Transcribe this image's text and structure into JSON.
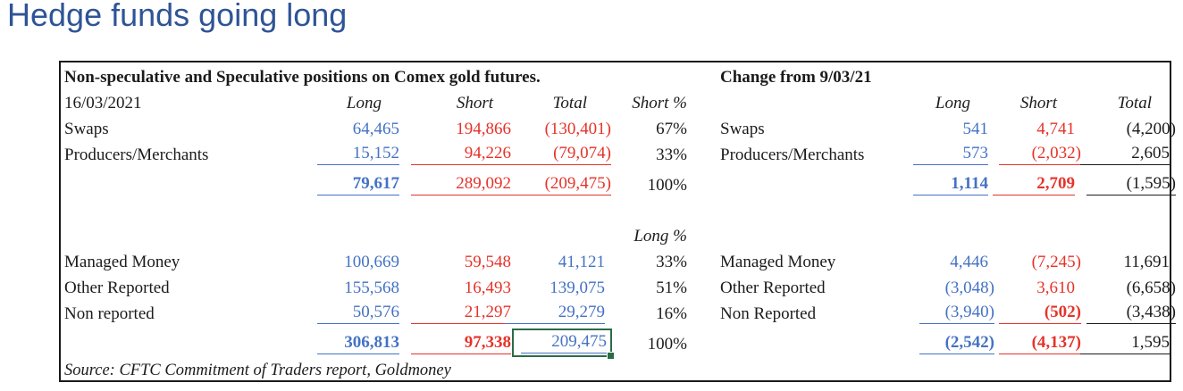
{
  "page": {
    "title": "Hedge funds going long"
  },
  "colors": {
    "title_blue": "#2F5496",
    "long_blue": "#4472C4",
    "short_red": "#E5332A",
    "text_black": "#1b1b1b",
    "selection_green": "#2B6C47"
  },
  "left": {
    "header": "Non-speculative and Speculative positions on Comex gold futures.",
    "date": "16/03/2021",
    "columns": {
      "long": "Long",
      "short": "Short",
      "total": "Total",
      "pct": "Short %"
    },
    "rows1": [
      {
        "label": "Swaps",
        "long": "64,465",
        "short": "194,866",
        "total": "(130,401)",
        "pct": "67%"
      },
      {
        "label": "Producers/Merchants",
        "long": "15,152",
        "short": "94,226",
        "total": "(79,074)",
        "pct": "33%"
      }
    ],
    "total1": {
      "long": "79,617",
      "short": "289,092",
      "total": "(209,475)",
      "pct": "100%"
    },
    "pct2_header": "Long %",
    "rows2": [
      {
        "label": "Managed Money",
        "long": "100,669",
        "short": "59,548",
        "total": "41,121",
        "pct": "33%"
      },
      {
        "label": "Other Reported",
        "long": "155,568",
        "short": "16,493",
        "total": "139,075",
        "pct": "51%"
      },
      {
        "label": "Non reported",
        "long": "50,576",
        "short": "21,297",
        "total": "29,279",
        "pct": "16%"
      }
    ],
    "total2": {
      "long": "306,813",
      "short": "97,338",
      "total": "209,475",
      "pct": "100%"
    },
    "source": "Source: CFTC Commitment of Traders report, Goldmoney"
  },
  "right": {
    "header": "Change from 9/03/21",
    "columns": {
      "long": "Long",
      "short": "Short",
      "total": "Total"
    },
    "rows1": [
      {
        "label": "Swaps",
        "long": "541",
        "short": "4,741",
        "total": "(4,200)"
      },
      {
        "label": "Producers/Merchants",
        "long": "573",
        "short": "(2,032)",
        "total": "2,605"
      }
    ],
    "total1": {
      "long": "1,114",
      "short": "2,709",
      "total": "(1,595)"
    },
    "rows2": [
      {
        "label": "Managed Money",
        "long": "4,446",
        "short": "(7,245)",
        "total": "11,691"
      },
      {
        "label": "Other Reported",
        "long": "(3,048)",
        "short": "3,610",
        "total": "(6,658)"
      },
      {
        "label": "Non Reported",
        "long": "(3,940)",
        "short": "(502)",
        "total": "(3,438)"
      }
    ],
    "total2": {
      "long": "(2,542)",
      "short": "(4,137)",
      "total": "1,595"
    }
  }
}
